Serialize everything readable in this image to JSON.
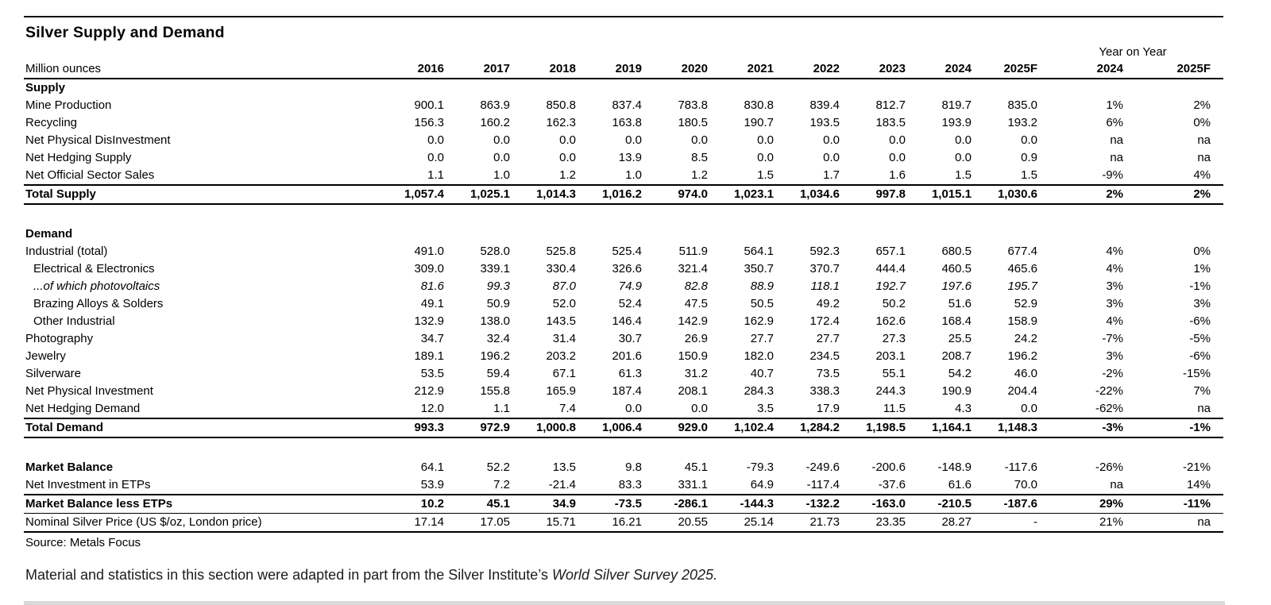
{
  "title": "Silver Supply and Demand",
  "table": {
    "unit_label": "Million ounces",
    "yoy_header": "Year on Year",
    "year_columns": [
      "2016",
      "2017",
      "2018",
      "2019",
      "2020",
      "2021",
      "2022",
      "2023",
      "2024",
      "2025F"
    ],
    "yoy_columns": [
      "2024",
      "2025F"
    ],
    "rows": [
      {
        "label": "Supply",
        "bold_label": true,
        "values": [],
        "yoy": []
      },
      {
        "label": "Mine Production",
        "values": [
          "900.1",
          "863.9",
          "850.8",
          "837.4",
          "783.8",
          "830.8",
          "839.4",
          "812.7",
          "819.7",
          "835.0"
        ],
        "yoy": [
          "1%",
          "2%"
        ]
      },
      {
        "label": "Recycling",
        "values": [
          "156.3",
          "160.2",
          "162.3",
          "163.8",
          "180.5",
          "190.7",
          "193.5",
          "183.5",
          "193.9",
          "193.2"
        ],
        "yoy": [
          "6%",
          "0%"
        ]
      },
      {
        "label": "Net Physical DisInvestment",
        "values": [
          "0.0",
          "0.0",
          "0.0",
          "0.0",
          "0.0",
          "0.0",
          "0.0",
          "0.0",
          "0.0",
          "0.0"
        ],
        "yoy": [
          "na",
          "na"
        ]
      },
      {
        "label": "Net Hedging Supply",
        "values": [
          "0.0",
          "0.0",
          "0.0",
          "13.9",
          "8.5",
          "0.0",
          "0.0",
          "0.0",
          "0.0",
          "0.9"
        ],
        "yoy": [
          "na",
          "na"
        ]
      },
      {
        "label": "Net Official Sector Sales",
        "values": [
          "1.1",
          "1.0",
          "1.2",
          "1.0",
          "1.2",
          "1.5",
          "1.7",
          "1.6",
          "1.5",
          "1.5"
        ],
        "yoy": [
          "-9%",
          "4%"
        ],
        "rule": "thick"
      },
      {
        "label": "Total Supply",
        "bold": true,
        "values": [
          "1,057.4",
          "1,025.1",
          "1,014.3",
          "1,016.2",
          "974.0",
          "1,023.1",
          "1,034.6",
          "997.8",
          "1,015.1",
          "1,030.6"
        ],
        "yoy": [
          "2%",
          "2%"
        ],
        "rule": "thick"
      },
      {
        "spacer": true
      },
      {
        "label": "Demand",
        "bold_label": true,
        "values": [],
        "yoy": []
      },
      {
        "label": "Industrial (total)",
        "values": [
          "491.0",
          "528.0",
          "525.8",
          "525.4",
          "511.9",
          "564.1",
          "592.3",
          "657.1",
          "680.5",
          "677.4"
        ],
        "yoy": [
          "4%",
          "0%"
        ]
      },
      {
        "label": "Electrical & Electronics",
        "indent": true,
        "values": [
          "309.0",
          "339.1",
          "330.4",
          "326.6",
          "321.4",
          "350.7",
          "370.7",
          "444.4",
          "460.5",
          "465.6"
        ],
        "yoy": [
          "4%",
          "1%"
        ]
      },
      {
        "label": "...of which photovoltaics",
        "indent": true,
        "italic": true,
        "values": [
          "81.6",
          "99.3",
          "87.0",
          "74.9",
          "82.8",
          "88.9",
          "118.1",
          "192.7",
          "197.6",
          "195.7"
        ],
        "yoy": [
          "3%",
          "-1%"
        ]
      },
      {
        "label": "Brazing Alloys & Solders",
        "indent": true,
        "values": [
          "49.1",
          "50.9",
          "52.0",
          "52.4",
          "47.5",
          "50.5",
          "49.2",
          "50.2",
          "51.6",
          "52.9"
        ],
        "yoy": [
          "3%",
          "3%"
        ]
      },
      {
        "label": "Other Industrial",
        "indent": true,
        "values": [
          "132.9",
          "138.0",
          "143.5",
          "146.4",
          "142.9",
          "162.9",
          "172.4",
          "162.6",
          "168.4",
          "158.9"
        ],
        "yoy": [
          "4%",
          "-6%"
        ]
      },
      {
        "label": "Photography",
        "values": [
          "34.7",
          "32.4",
          "31.4",
          "30.7",
          "26.9",
          "27.7",
          "27.7",
          "27.3",
          "25.5",
          "24.2"
        ],
        "yoy": [
          "-7%",
          "-5%"
        ]
      },
      {
        "label": "Jewelry",
        "values": [
          "189.1",
          "196.2",
          "203.2",
          "201.6",
          "150.9",
          "182.0",
          "234.5",
          "203.1",
          "208.7",
          "196.2"
        ],
        "yoy": [
          "3%",
          "-6%"
        ]
      },
      {
        "label": "Silverware",
        "values": [
          "53.5",
          "59.4",
          "67.1",
          "61.3",
          "31.2",
          "40.7",
          "73.5",
          "55.1",
          "54.2",
          "46.0"
        ],
        "yoy": [
          "-2%",
          "-15%"
        ]
      },
      {
        "label": "Net Physical Investment",
        "values": [
          "212.9",
          "155.8",
          "165.9",
          "187.4",
          "208.1",
          "284.3",
          "338.3",
          "244.3",
          "190.9",
          "204.4"
        ],
        "yoy": [
          "-22%",
          "7%"
        ]
      },
      {
        "label": "Net Hedging Demand",
        "values": [
          "12.0",
          "1.1",
          "7.4",
          "0.0",
          "0.0",
          "3.5",
          "17.9",
          "11.5",
          "4.3",
          "0.0"
        ],
        "yoy": [
          "-62%",
          "na"
        ],
        "rule": "thick"
      },
      {
        "label": "Total Demand",
        "bold": true,
        "values": [
          "993.3",
          "972.9",
          "1,000.8",
          "1,006.4",
          "929.0",
          "1,102.4",
          "1,284.2",
          "1,198.5",
          "1,164.1",
          "1,148.3"
        ],
        "yoy": [
          "-3%",
          "-1%"
        ],
        "rule": "thick"
      },
      {
        "spacer": true
      },
      {
        "label": "Market Balance",
        "bold_label": true,
        "values": [
          "64.1",
          "52.2",
          "13.5",
          "9.8",
          "45.1",
          "-79.3",
          "-249.6",
          "-200.6",
          "-148.9",
          "-117.6"
        ],
        "yoy": [
          "-26%",
          "-21%"
        ]
      },
      {
        "label": "Net Investment in ETPs",
        "values": [
          "53.9",
          "7.2",
          "-21.4",
          "83.3",
          "331.1",
          "64.9",
          "-117.4",
          "-37.6",
          "61.6",
          "70.0"
        ],
        "yoy": [
          "na",
          "14%"
        ],
        "rule": "thick"
      },
      {
        "label": "Market Balance less ETPs",
        "bold": true,
        "values": [
          "10.2",
          "45.1",
          "34.9",
          "-73.5",
          "-286.1",
          "-144.3",
          "-132.2",
          "-163.0",
          "-210.5",
          "-187.6"
        ],
        "yoy": [
          "29%",
          "-11%"
        ],
        "rule": "thin"
      },
      {
        "label": "Nominal Silver Price (US $/oz, London price)",
        "values": [
          "17.14",
          "17.05",
          "15.71",
          "16.21",
          "20.55",
          "25.14",
          "21.73",
          "23.35",
          "28.27",
          "-"
        ],
        "yoy": [
          "21%",
          "na"
        ],
        "rule": "med"
      }
    ]
  },
  "source": "Source: Metals Focus",
  "footnote": {
    "text": "Material and statistics in this section were adapted in part from the Silver Institute’s ",
    "italic_text": "World Silver Survey 2025."
  }
}
